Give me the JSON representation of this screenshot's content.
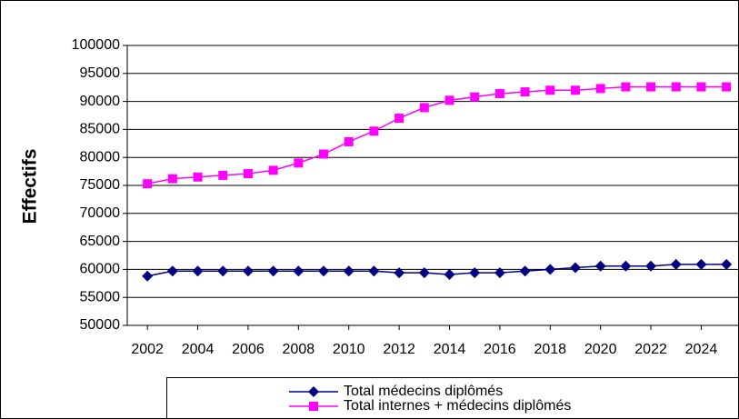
{
  "chart_data": {
    "type": "line",
    "y_label": "Effectifs",
    "x": [
      2002,
      2003,
      2004,
      2005,
      2006,
      2007,
      2008,
      2009,
      2010,
      2011,
      2012,
      2013,
      2014,
      2015,
      2016,
      2017,
      2018,
      2019,
      2020,
      2021,
      2022,
      2023,
      2024,
      2025
    ],
    "xlim": [
      2001.2,
      2025.5
    ],
    "xticks": [
      2002,
      2004,
      2006,
      2008,
      2010,
      2012,
      2014,
      2016,
      2018,
      2020,
      2022,
      2024
    ],
    "ylim": [
      50000,
      100000
    ],
    "yticks": [
      50000,
      55000,
      60000,
      65000,
      70000,
      75000,
      80000,
      85000,
      90000,
      95000,
      100000
    ],
    "grid": true,
    "legend": "bottom",
    "series": [
      {
        "name": "Total médecins diplômés",
        "color": "#000080",
        "marker": "diamond",
        "values": [
          58800,
          59700,
          59700,
          59700,
          59700,
          59700,
          59700,
          59700,
          59700,
          59700,
          59400,
          59400,
          59100,
          59400,
          59400,
          59700,
          60000,
          60300,
          60600,
          60600,
          60600,
          60900,
          60900,
          60900
        ]
      },
      {
        "name": "Total internes + médecins diplômés",
        "color": "#ff00ff",
        "marker": "square",
        "values": [
          75300,
          76200,
          76500,
          76800,
          77100,
          77700,
          79000,
          80600,
          82800,
          84700,
          87000,
          88900,
          90200,
          90800,
          91400,
          91700,
          92000,
          92000,
          92300,
          92600,
          92600,
          92600,
          92600,
          92600
        ]
      }
    ]
  }
}
